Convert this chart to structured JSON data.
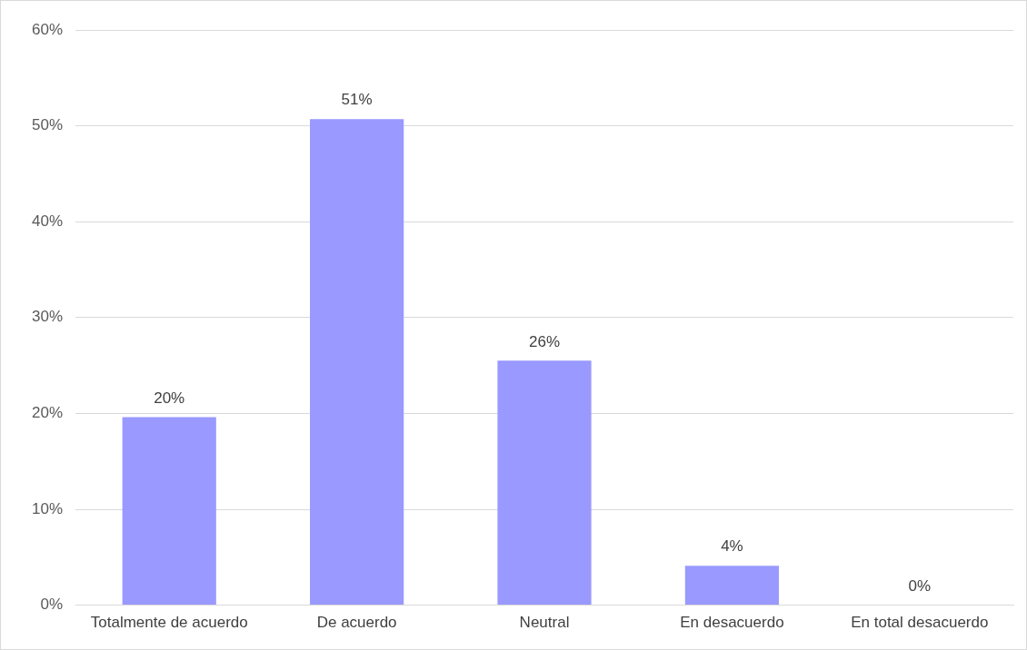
{
  "chart_data": {
    "type": "bar",
    "categories": [
      "Totalmente de acuerdo",
      "De acuerdo",
      "Neutral",
      "En desacuerdo",
      "En total desacuerdo"
    ],
    "values": [
      19.6,
      50.7,
      25.5,
      4.1,
      0
    ],
    "value_labels": [
      "20%",
      "51%",
      "26%",
      "4%",
      "0%"
    ],
    "color": "#9999ff",
    "ylim": [
      0,
      60
    ],
    "yticks": [
      {
        "value": 0,
        "label": "0%"
      },
      {
        "value": 10,
        "label": "10%"
      },
      {
        "value": 20,
        "label": "20%"
      },
      {
        "value": 30,
        "label": "30%"
      },
      {
        "value": 40,
        "label": "40%"
      },
      {
        "value": 50,
        "label": "50%"
      },
      {
        "value": 60,
        "label": "60%"
      }
    ],
    "grid": "y",
    "legend": false
  }
}
